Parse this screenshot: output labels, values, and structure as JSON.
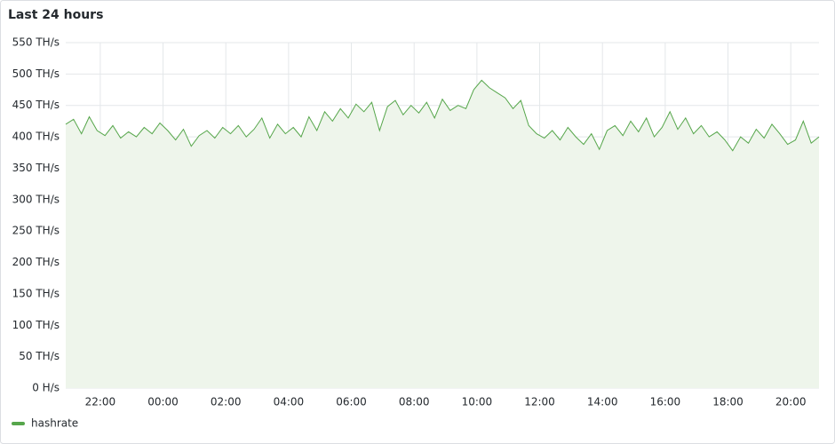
{
  "chart_data": {
    "type": "area",
    "title": "Last 24 hours",
    "x": [
      20.9,
      21.15,
      21.4,
      21.65,
      21.9,
      22.15,
      22.4,
      22.65,
      22.9,
      23.15,
      23.4,
      23.65,
      23.9,
      24.15,
      24.4,
      24.65,
      24.9,
      25.15,
      25.4,
      25.65,
      25.9,
      26.15,
      26.4,
      26.65,
      26.9,
      27.15,
      27.4,
      27.65,
      27.9,
      28.15,
      28.4,
      28.65,
      28.9,
      29.15,
      29.4,
      29.65,
      29.9,
      30.15,
      30.4,
      30.65,
      30.9,
      31.15,
      31.4,
      31.65,
      31.9,
      32.15,
      32.4,
      32.65,
      32.9,
      33.15,
      33.4,
      33.65,
      33.9,
      34.15,
      34.4,
      34.65,
      34.9,
      35.15,
      35.4,
      35.65,
      35.9,
      36.15,
      36.4,
      36.65,
      36.9,
      37.15,
      37.4,
      37.65,
      37.9,
      38.15,
      38.4,
      38.65,
      38.9,
      39.15,
      39.4,
      39.65,
      39.9,
      40.15,
      40.4,
      40.65,
      40.9,
      41.15,
      41.4,
      41.65,
      41.9,
      42.15,
      42.4,
      42.65,
      42.9,
      43.15,
      43.4,
      43.65,
      43.9,
      44.15,
      44.4,
      44.65,
      44.9
    ],
    "series": [
      {
        "name": "hashrate",
        "color": "#56a64b",
        "fill": "#eef5eb",
        "values": [
          420,
          428,
          405,
          432,
          410,
          402,
          418,
          398,
          408,
          400,
          415,
          405,
          422,
          410,
          395,
          412,
          385,
          402,
          410,
          398,
          415,
          405,
          418,
          400,
          412,
          430,
          398,
          420,
          405,
          415,
          400,
          432,
          410,
          440,
          425,
          445,
          430,
          452,
          440,
          455,
          410,
          448,
          458,
          435,
          450,
          438,
          455,
          430,
          460,
          442,
          450,
          445,
          475,
          490,
          478,
          470,
          462,
          445,
          458,
          418,
          405,
          398,
          410,
          395,
          415,
          400,
          388,
          405,
          380,
          410,
          418,
          402,
          425,
          408,
          430,
          400,
          415,
          440,
          412,
          430,
          405,
          418,
          400,
          408,
          395,
          378,
          400,
          390,
          412,
          398,
          420,
          405,
          388,
          395,
          425,
          390,
          400
        ]
      }
    ],
    "xlim": [
      20.9,
      44.9
    ],
    "xticks": [
      {
        "value": 22,
        "label": "22:00"
      },
      {
        "value": 24,
        "label": "00:00"
      },
      {
        "value": 26,
        "label": "02:00"
      },
      {
        "value": 28,
        "label": "04:00"
      },
      {
        "value": 30,
        "label": "06:00"
      },
      {
        "value": 32,
        "label": "08:00"
      },
      {
        "value": 34,
        "label": "10:00"
      },
      {
        "value": 36,
        "label": "12:00"
      },
      {
        "value": 38,
        "label": "14:00"
      },
      {
        "value": 40,
        "label": "16:00"
      },
      {
        "value": 42,
        "label": "18:00"
      },
      {
        "value": 44,
        "label": "20:00"
      }
    ],
    "ylim": [
      0,
      550
    ],
    "yticks": [
      {
        "value": 0,
        "label": "0 H/s"
      },
      {
        "value": 50,
        "label": "50 TH/s"
      },
      {
        "value": 100,
        "label": "100 TH/s"
      },
      {
        "value": 150,
        "label": "150 TH/s"
      },
      {
        "value": 200,
        "label": "200 TH/s"
      },
      {
        "value": 250,
        "label": "250 TH/s"
      },
      {
        "value": 300,
        "label": "300 TH/s"
      },
      {
        "value": 350,
        "label": "350 TH/s"
      },
      {
        "value": 400,
        "label": "400 TH/s"
      },
      {
        "value": 450,
        "label": "450 TH/s"
      },
      {
        "value": 500,
        "label": "500 TH/s"
      },
      {
        "value": 550,
        "label": "550 TH/s"
      }
    ],
    "grid": true
  }
}
